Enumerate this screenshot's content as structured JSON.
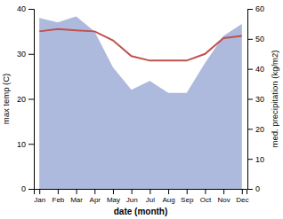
{
  "chart_data": {
    "type": "line",
    "categories": [
      "Jan",
      "Feb",
      "Mar",
      "Apr",
      "May",
      "Jun",
      "Jul",
      "Aug",
      "Sep",
      "Oct",
      "Nov",
      "Dec"
    ],
    "xlabel": "date (month)",
    "ylabel": "max temp (C)",
    "y2label": "med. precipitation (kg/m2)",
    "series": [
      {
        "type": "area",
        "axis": "y2",
        "color": "#adb9dd",
        "values": [
          57.0,
          55.5,
          57.5,
          52.5,
          40.5,
          33.0,
          36.0,
          32.0,
          32.0,
          42.0,
          51.0,
          55.0
        ]
      },
      {
        "type": "line",
        "color": "#c0504d",
        "values": [
          35.0,
          35.5,
          35.2,
          35.0,
          33.0,
          29.5,
          28.5,
          28.5,
          28.5,
          30.0,
          33.5,
          34.0
        ]
      }
    ],
    "ylim": [
      0,
      40
    ],
    "yticks": [
      0,
      10,
      20,
      30,
      40
    ],
    "y2lim": [
      0,
      60
    ],
    "y2ticks": [
      0,
      10,
      20,
      30,
      40,
      50,
      60
    ],
    "grid": false
  }
}
